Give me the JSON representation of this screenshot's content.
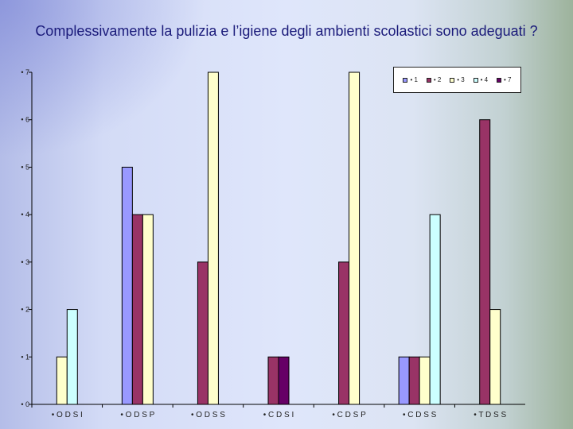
{
  "title": "Complessivamente la pulizia e l’igiene degli ambienti scolastici sono adeguati ?",
  "colors": {
    "s1": "#9999ff",
    "s2": "#993366",
    "s3": "#ffffcc",
    "s4": "#ccffff",
    "s7": "#660066"
  },
  "chart_data": {
    "type": "bar",
    "title": "Complessivamente la pulizia e l’igiene degli ambienti scolastici sono adeguati ?",
    "xlabel": "",
    "ylabel": "",
    "ylim": [
      0,
      7
    ],
    "y_ticks": [
      "0",
      "1",
      "2",
      "3",
      "4",
      "5",
      "6",
      "7"
    ],
    "grid": false,
    "legend_position": "top-right",
    "categories": [
      "O D S I",
      "O D S P",
      "O D S S",
      "C D S I",
      "C D S P",
      "C D S S",
      "T D S S"
    ],
    "series": [
      {
        "name": "1",
        "color": "#9999ff",
        "values": [
          0,
          5,
          0,
          0,
          0,
          1,
          0
        ]
      },
      {
        "name": "2",
        "color": "#993366",
        "values": [
          0,
          4,
          3,
          1,
          3,
          1,
          6
        ]
      },
      {
        "name": "3",
        "color": "#ffffcc",
        "values": [
          1,
          4,
          7,
          0,
          7,
          1,
          2
        ]
      },
      {
        "name": "4",
        "color": "#ccffff",
        "values": [
          2,
          0,
          0,
          0,
          0,
          4,
          0
        ]
      },
      {
        "name": "7",
        "color": "#660066",
        "values": [
          0,
          0,
          0,
          1,
          0,
          0,
          0
        ]
      }
    ]
  }
}
